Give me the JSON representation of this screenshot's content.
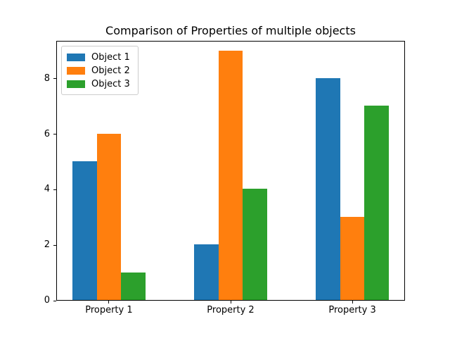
{
  "title": "Comparison of Properties of multiple objects",
  "chart_data": {
    "type": "bar",
    "title": "Comparison of Properties of multiple objects",
    "xlabel": "",
    "ylabel": "",
    "categories": [
      "Property 1",
      "Property 2",
      "Property 3"
    ],
    "series": [
      {
        "name": "Object 1",
        "color": "#1f77b4",
        "values": [
          5,
          2,
          8
        ]
      },
      {
        "name": "Object 2",
        "color": "#ff7f0e",
        "values": [
          6,
          9,
          3
        ]
      },
      {
        "name": "Object 3",
        "color": "#2ca02c",
        "values": [
          1,
          4,
          7
        ]
      }
    ],
    "yticks": [
      0,
      2,
      4,
      6,
      8
    ],
    "ylim": [
      0,
      9.37
    ],
    "xlim": [
      -0.433,
      2.433
    ],
    "bar_width": 0.2,
    "grid": false,
    "legend_position": "upper left",
    "background_color": "#ffffff",
    "spine_color": "#000000"
  }
}
